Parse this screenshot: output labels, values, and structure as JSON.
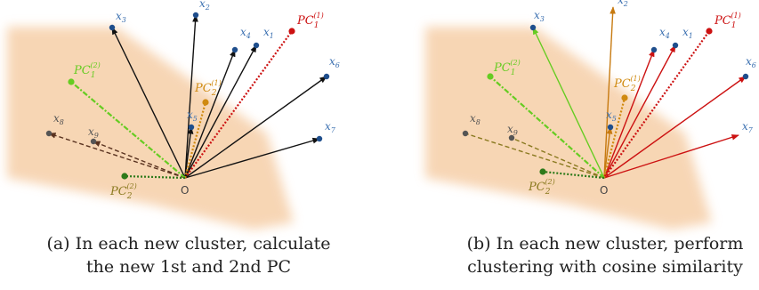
{
  "panel_a": {
    "caption_line1": "(a) In each new cluster, calculate",
    "caption_line2": "the new 1st and 2nd PC"
  },
  "panel_b": {
    "caption_line1": "(b) In each new cluster, perform",
    "caption_line2": "clustering with cosine similarity"
  },
  "origin_label": "O",
  "vector_labels": {
    "x1": "x",
    "x1_sub": "1",
    "x2": "x",
    "x2_sub": "2",
    "x3": "x",
    "x3_sub": "3",
    "x4": "x",
    "x4_sub": "4",
    "x5": "x",
    "x5_sub": "5",
    "x6": "x",
    "x6_sub": "6",
    "x7": "x",
    "x7_sub": "7",
    "x8": "x",
    "x8_sub": "8",
    "x9": "x",
    "x9_sub": "9"
  },
  "pc_labels": {
    "pc1_1_base": "PC",
    "pc1_1_sub": "1",
    "pc1_1_sup": "(1)",
    "pc2_1_base": "PC",
    "pc2_1_sub": "2",
    "pc2_1_sup": "(1)",
    "pc1_2_base": "PC",
    "pc1_2_sub": "1",
    "pc1_2_sup": "(2)",
    "pc2_2_base": "PC",
    "pc2_2_sub": "2",
    "pc2_2_sup": "(2)"
  },
  "colors": {
    "background_band": "#f6cfa8",
    "point_blue": "#1f4e8c",
    "label_blue": "#3a6fb0",
    "point_gray": "#555555",
    "pc1_1": "#cc1111",
    "pc2_1": "#d08a10",
    "pc1_2": "#66cc22",
    "pc2_2": "#2d7a1a",
    "cluster_red": "#cc1111",
    "cluster_orange": "#c77a10",
    "cluster_green": "#66cc22",
    "black": "#111111",
    "dark_brown": "#5a3320"
  }
}
